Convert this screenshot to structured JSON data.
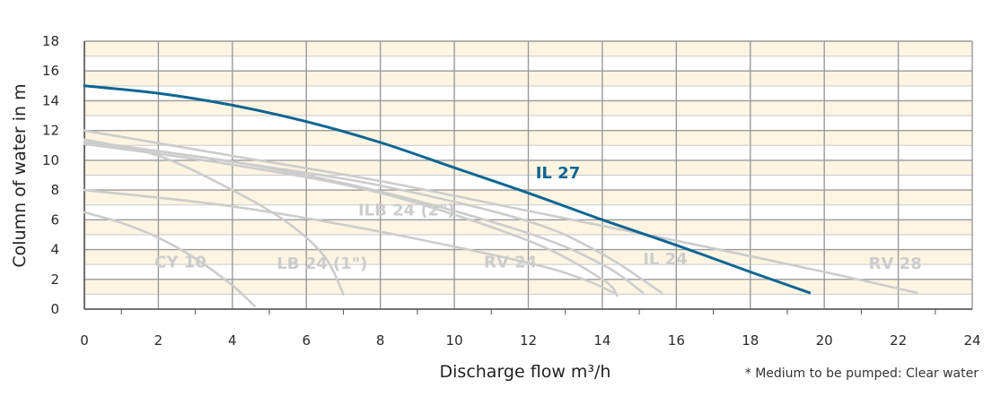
{
  "chart_data": {
    "type": "line",
    "title": "",
    "xlabel": "Discharge flow m³/h",
    "ylabel": "Column of water in m",
    "xlim": [
      0,
      24
    ],
    "ylim": [
      0,
      18
    ],
    "x_ticks": [
      "0",
      "2",
      "4",
      "6",
      "8",
      "10",
      "12",
      "14",
      "16",
      "18",
      "20",
      "22",
      "24"
    ],
    "y_ticks": [
      "0",
      "2",
      "4",
      "6",
      "8",
      "10",
      "12",
      "14",
      "16",
      "18"
    ],
    "grid": true,
    "note": "* Medium to be pumped: Clear water",
    "colors": {
      "highlight": "#0e6593",
      "other": "#cccccc",
      "grid": "#9a9a9a",
      "band": "#fdf4e2"
    },
    "series": [
      {
        "name": "IL 27",
        "highlight": true,
        "label_pos": [
          12.2,
          8.8
        ],
        "x": [
          0,
          2,
          4,
          6,
          8,
          10,
          12,
          14,
          16,
          18,
          19.6
        ],
        "y": [
          15.0,
          14.5,
          13.7,
          12.6,
          11.2,
          9.5,
          7.8,
          6.0,
          4.3,
          2.5,
          1.1
        ]
      },
      {
        "name": "RV 28",
        "highlight": false,
        "label_pos": [
          21.2,
          2.7
        ],
        "x": [
          0,
          4,
          8,
          12,
          16,
          20,
          22.5
        ],
        "y": [
          12.0,
          10.3,
          8.6,
          6.6,
          4.6,
          2.5,
          1.1
        ]
      },
      {
        "name": "IL 24",
        "highlight": false,
        "label_pos": [
          15.1,
          3.0
        ],
        "x": [
          0,
          4,
          8,
          12,
          14,
          15.6
        ],
        "y": [
          11.3,
          9.9,
          8.3,
          5.9,
          3.7,
          1.1
        ]
      },
      {
        "name": "",
        "highlight": false,
        "label_pos": null,
        "x": [
          0,
          4,
          8,
          12,
          14,
          15.1
        ],
        "y": [
          11.2,
          9.9,
          7.9,
          5.1,
          3.0,
          1.1
        ]
      },
      {
        "name": "ILB 24 (2\")",
        "highlight": false,
        "label_pos": [
          7.4,
          6.3
        ],
        "x": [
          0,
          4,
          8,
          12,
          14,
          14.4
        ],
        "y": [
          11.1,
          9.7,
          7.8,
          4.6,
          2.0,
          0.9
        ]
      },
      {
        "name": "RV 24",
        "highlight": false,
        "label_pos": [
          10.8,
          2.8
        ],
        "x": [
          0,
          4,
          8,
          12,
          13.5,
          14.3
        ],
        "y": [
          8.0,
          6.9,
          5.2,
          3.1,
          2.0,
          1.1
        ]
      },
      {
        "name": "LB 24 (1\")",
        "highlight": false,
        "label_pos": [
          5.2,
          2.7
        ],
        "x": [
          0,
          2,
          4,
          5.5,
          6.5,
          7.0
        ],
        "y": [
          11.4,
          10.3,
          8.0,
          5.8,
          3.5,
          1.0
        ]
      },
      {
        "name": "CY 10",
        "highlight": false,
        "label_pos": [
          1.9,
          2.8
        ],
        "x": [
          0,
          1,
          2,
          3,
          4,
          4.6
        ],
        "y": [
          6.5,
          5.8,
          4.8,
          3.4,
          1.6,
          0.2
        ]
      }
    ]
  }
}
